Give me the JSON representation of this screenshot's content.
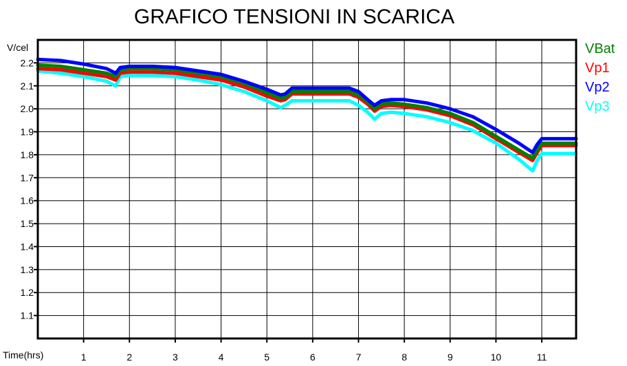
{
  "chart_data": {
    "type": "line",
    "title": "GRAFICO TENSIONI IN SCARICA",
    "ylabel": "V/cel",
    "xlabel": "Time(hrs)",
    "xlim": [
      0,
      11.75
    ],
    "ylim": [
      1.0,
      2.3
    ],
    "x_ticks": [
      1,
      2,
      3,
      4,
      5,
      6,
      7,
      8,
      9,
      10,
      11
    ],
    "y_ticks": [
      1.1,
      1.2,
      1.3,
      1.4,
      1.5,
      1.6,
      1.7,
      1.8,
      1.9,
      2.0,
      2.1,
      2.2
    ],
    "grid": true,
    "legend_position": "right",
    "series": [
      {
        "name": "VBat",
        "color": "#008000",
        "x": [
          0,
          0.5,
          1,
          1.5,
          1.7,
          1.8,
          2,
          2.5,
          3,
          3.5,
          4,
          4.5,
          5,
          5.3,
          5.4,
          5.55,
          6,
          6.5,
          6.8,
          7,
          7.2,
          7.35,
          7.5,
          7.7,
          8,
          8.5,
          9,
          9.5,
          10,
          10.5,
          10.8,
          10.9,
          11,
          11.75
        ],
        "y": [
          2.19,
          2.185,
          2.17,
          2.155,
          2.14,
          2.17,
          2.175,
          2.175,
          2.17,
          2.155,
          2.14,
          2.11,
          2.07,
          2.045,
          2.05,
          2.075,
          2.075,
          2.075,
          2.075,
          2.06,
          2.03,
          2.0,
          2.02,
          2.025,
          2.02,
          2.005,
          1.98,
          1.94,
          1.88,
          1.82,
          1.785,
          1.82,
          1.85,
          1.85
        ]
      },
      {
        "name": "Vp1",
        "color": "#ff0000",
        "x": [
          0,
          0.5,
          1,
          1.5,
          1.7,
          1.8,
          2,
          2.5,
          3,
          3.5,
          4,
          4.5,
          5,
          5.3,
          5.4,
          5.55,
          6,
          6.5,
          6.8,
          7,
          7.2,
          7.35,
          7.5,
          7.7,
          8,
          8.5,
          9,
          9.5,
          10,
          10.5,
          10.8,
          10.9,
          11,
          11.75
        ],
        "y": [
          2.175,
          2.17,
          2.155,
          2.14,
          2.125,
          2.155,
          2.16,
          2.16,
          2.155,
          2.14,
          2.125,
          2.095,
          2.055,
          2.035,
          2.04,
          2.065,
          2.065,
          2.065,
          2.065,
          2.05,
          2.02,
          1.99,
          2.01,
          2.015,
          2.01,
          1.995,
          1.97,
          1.93,
          1.87,
          1.81,
          1.775,
          1.81,
          1.84,
          1.84
        ]
      },
      {
        "name": "Vp2",
        "color": "#0000ff",
        "x": [
          0,
          0.5,
          1,
          1.5,
          1.7,
          1.8,
          2,
          2.5,
          3,
          3.5,
          4,
          4.5,
          5,
          5.3,
          5.4,
          5.55,
          6,
          6.5,
          6.8,
          7,
          7.2,
          7.35,
          7.5,
          7.7,
          8,
          8.5,
          9,
          9.5,
          10,
          10.5,
          10.8,
          10.9,
          11,
          11.75
        ],
        "y": [
          2.215,
          2.21,
          2.195,
          2.175,
          2.155,
          2.18,
          2.185,
          2.185,
          2.18,
          2.165,
          2.15,
          2.12,
          2.085,
          2.06,
          2.065,
          2.09,
          2.09,
          2.09,
          2.09,
          2.075,
          2.04,
          2.015,
          2.035,
          2.04,
          2.04,
          2.025,
          2.0,
          1.965,
          1.91,
          1.85,
          1.81,
          1.845,
          1.87,
          1.87
        ]
      },
      {
        "name": "Vp3",
        "color": "#00ffff",
        "x": [
          0,
          0.5,
          1,
          1.5,
          1.7,
          1.8,
          2,
          2.5,
          3,
          3.5,
          4,
          4.5,
          5,
          5.3,
          5.4,
          5.55,
          6,
          6.5,
          6.8,
          7,
          7.2,
          7.35,
          7.5,
          7.7,
          8,
          8.5,
          9,
          9.5,
          10,
          10.5,
          10.8,
          10.9,
          11,
          11.75
        ],
        "y": [
          2.165,
          2.155,
          2.14,
          2.12,
          2.1,
          2.14,
          2.145,
          2.145,
          2.14,
          2.125,
          2.105,
          2.075,
          2.035,
          2.005,
          2.015,
          2.035,
          2.035,
          2.035,
          2.035,
          2.015,
          1.985,
          1.955,
          1.98,
          1.985,
          1.98,
          1.965,
          1.94,
          1.905,
          1.85,
          1.78,
          1.73,
          1.775,
          1.805,
          1.805
        ]
      }
    ]
  }
}
